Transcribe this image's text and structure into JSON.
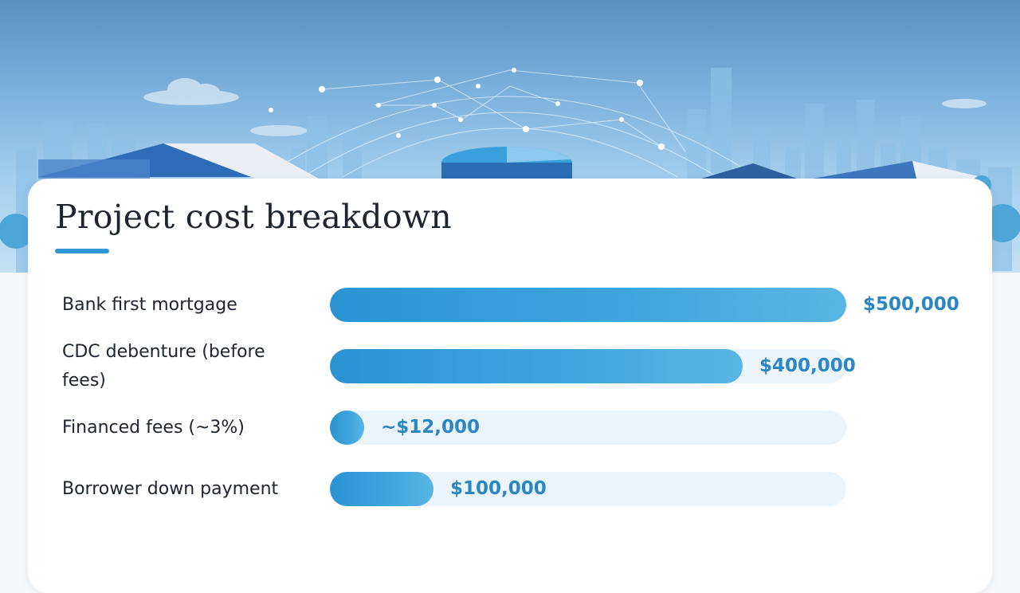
{
  "title": "Project cost breakdown",
  "colors": {
    "accent": "#2f97d6",
    "bar": "#3aa0dc",
    "track": "#ebf4fb",
    "value_text": "#2a87c4"
  },
  "chart_data": {
    "type": "bar",
    "orientation": "horizontal",
    "title": "Project cost breakdown",
    "categories": [
      "Bank first mortgage",
      "CDC debenture (before fees)",
      "Financed fees (~3%)",
      "Borrower down payment"
    ],
    "values": [
      500000,
      400000,
      12000,
      100000
    ],
    "value_labels": [
      "$500,000",
      "$400,000",
      "~$12,000",
      "$100,000"
    ],
    "xlim": [
      0,
      500000
    ],
    "grid": false,
    "legend": "none"
  }
}
